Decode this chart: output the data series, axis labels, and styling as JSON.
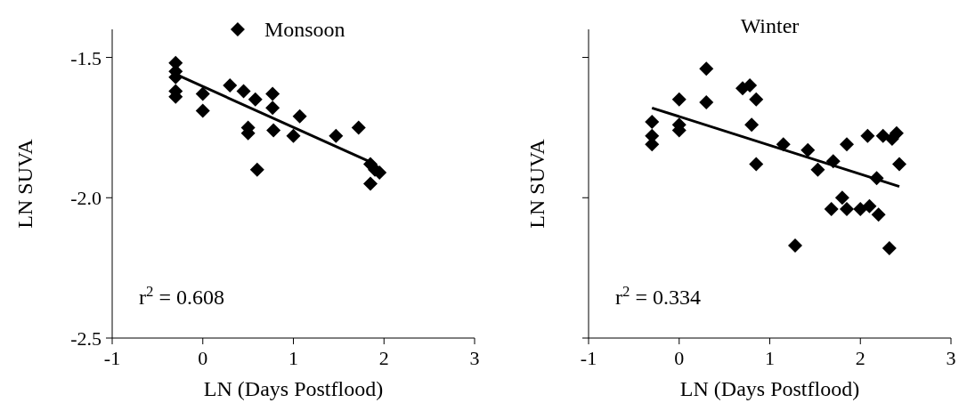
{
  "chart_data": [
    {
      "type": "scatter",
      "xlabel": "LN (Days Postflood)",
      "ylabel": "LN SUVA",
      "xlim": [
        -1,
        3
      ],
      "xticks": [
        -1,
        0,
        1,
        2,
        3
      ],
      "ylim": [
        -2.5,
        -1.4
      ],
      "yticks": [
        {
          "value": -2.5,
          "label": "-2.5"
        },
        {
          "value": -2.0,
          "label": "-2.0"
        },
        {
          "value": -1.5,
          "label": "-1.5"
        }
      ],
      "grid": false,
      "legend": "top",
      "annotations": [
        "r$^{2}$ = 0.608"
      ],
      "series": [
        {
          "name": "Monsoon",
          "marker": "diamond",
          "color": "#000000",
          "x": [
            -0.3,
            -0.3,
            -0.3,
            -0.3,
            -0.3,
            0,
            0,
            0.3,
            0.45,
            0.5,
            0.5,
            0.58,
            0.6,
            0.77,
            0.77,
            0.78,
            1.07,
            1.0,
            1.47,
            1.72,
            1.85,
            1.9,
            1.95,
            1.85
          ],
          "values": [
            -1.52,
            -1.55,
            -1.57,
            -1.62,
            -1.64,
            -1.63,
            -1.69,
            -1.6,
            -1.62,
            -1.75,
            -1.77,
            -1.65,
            -1.9,
            -1.63,
            -1.68,
            -1.76,
            -1.71,
            -1.78,
            -1.78,
            -1.75,
            -1.88,
            -1.9,
            -1.91,
            -1.95
          ]
        },
        {
          "type": "line",
          "color": "#000000",
          "line_style": "solid",
          "x": [
            -0.3,
            1.9
          ],
          "values": [
            -1.56,
            -1.88
          ]
        }
      ]
    },
    {
      "type": "scatter",
      "title": "Winter",
      "xlabel": "LN (Days Postflood)",
      "ylabel": "LN SUVA",
      "xlim": [
        -1,
        3
      ],
      "xticks": [
        -1,
        0,
        1,
        2,
        3
      ],
      "ylim": [
        -2.5,
        -1.4
      ],
      "yticks": [
        {
          "value": -2.5,
          "label": null
        },
        {
          "value": -2.0,
          "label": null
        },
        {
          "value": -1.5,
          "label": null
        }
      ],
      "tick_labels": "x",
      "grid": false,
      "annotations": [
        "r$^{2}$ = 0.334"
      ],
      "series": [
        {
          "marker": "diamond",
          "color": "#000000",
          "x": [
            -0.3,
            -0.3,
            -0.3,
            0,
            0,
            0,
            0.3,
            0.3,
            0.7,
            0.78,
            0.85,
            0.8,
            0.85,
            1.15,
            1.28,
            1.42,
            1.53,
            1.7,
            1.68,
            1.8,
            1.85,
            1.85,
            2.0,
            2.1,
            2.08,
            2.2,
            2.18,
            2.25,
            2.32,
            2.35,
            2.4,
            2.43
          ],
          "values": [
            -1.73,
            -1.78,
            -1.81,
            -1.65,
            -1.74,
            -1.76,
            -1.54,
            -1.66,
            -1.61,
            -1.6,
            -1.65,
            -1.74,
            -1.88,
            -1.81,
            -2.17,
            -1.83,
            -1.9,
            -1.87,
            -2.04,
            -2.0,
            -1.81,
            -2.04,
            -2.04,
            -2.03,
            -1.78,
            -2.06,
            -1.93,
            -1.78,
            -2.18,
            -1.79,
            -1.77,
            -1.88
          ]
        },
        {
          "type": "line",
          "color": "#000000",
          "line_style": "solid",
          "x": [
            -0.3,
            2.43
          ],
          "values": [
            -1.68,
            -1.96
          ]
        }
      ]
    }
  ]
}
